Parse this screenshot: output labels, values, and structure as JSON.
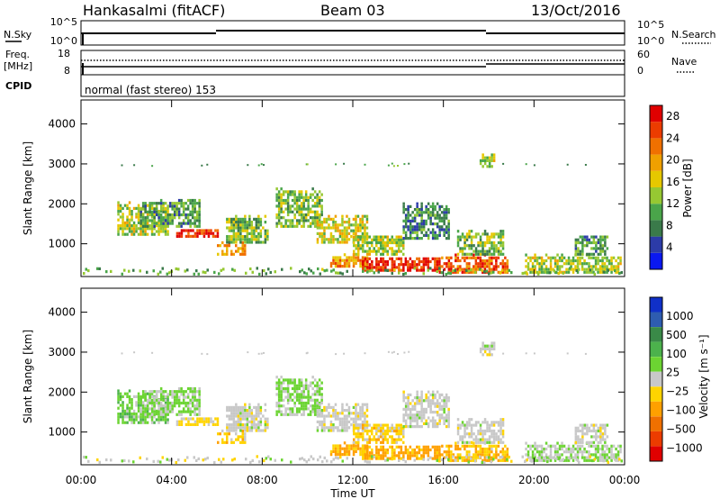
{
  "header": {
    "station": "Hankasalmi (fitACF)",
    "beam": "Beam 03",
    "date": "13/Oct/2016"
  },
  "noise_panel": {
    "left_label": "N.Sky",
    "right_label": "N.Search",
    "left_ticks": [
      "10^5",
      "10^0"
    ],
    "right_ticks": [
      "10^5",
      "10^0"
    ]
  },
  "freq_panel": {
    "left_label_1": "Freq.",
    "left_label_2": "[MHz]",
    "right_label": "Nave",
    "left_ticks": [
      "18",
      "8"
    ],
    "right_ticks": [
      "60",
      "0"
    ]
  },
  "cpid": {
    "label": "CPID",
    "text": "normal (fast stereo) 153"
  },
  "axes": {
    "ylabel": "Slant Range [km]",
    "xlabel": "Time UT",
    "yticks": [
      "1000",
      "2000",
      "3000",
      "4000"
    ],
    "xticks": [
      "00:00",
      "04:00",
      "08:00",
      "12:00",
      "16:00",
      "20:00",
      "00:00"
    ]
  },
  "power_scale": {
    "label": "Power [dB]",
    "ticks": [
      "4",
      "8",
      "12",
      "16",
      "20",
      "24",
      "28"
    ],
    "colors": [
      "#0a18f0",
      "#2c3ba8",
      "#3a7a4a",
      "#4aa54a",
      "#96c832",
      "#e6c800",
      "#f0a000",
      "#f07000",
      "#ec3c00",
      "#e00000"
    ]
  },
  "velocity_scale": {
    "label": "Velocity [m s⁻¹]",
    "ticks": [
      "1000",
      "500",
      "100",
      "25",
      "−25",
      "−100",
      "−500",
      "−1000"
    ],
    "colors": [
      "#1030c8",
      "#2e5cb0",
      "#3a8a48",
      "#4cb24c",
      "#6cd432",
      "#c8c8c8",
      "#ffd400",
      "#ffa000",
      "#f07000",
      "#ec3c00",
      "#e00000"
    ]
  },
  "chart_data": {
    "type": "heatmap",
    "x_range_hours": [
      0,
      24
    ],
    "y_range_km": [
      180,
      4600
    ],
    "grid": false,
    "panels": [
      "power",
      "velocity"
    ],
    "regions": [
      {
        "t0": 1.6,
        "t1": 3.8,
        "r0": 1200,
        "r1": 2000,
        "power": 14,
        "vel": 60
      },
      {
        "t0": 2.6,
        "t1": 5.2,
        "r0": 1400,
        "r1": 2100,
        "power": 10,
        "vel": 30
      },
      {
        "t0": 4.2,
        "t1": 6.0,
        "r0": 1150,
        "r1": 1350,
        "power": 26,
        "vel": -40
      },
      {
        "t0": 6.0,
        "t1": 7.2,
        "r0": 700,
        "r1": 1000,
        "power": 20,
        "vel": -60
      },
      {
        "t0": 6.4,
        "t1": 8.2,
        "r0": 1000,
        "r1": 1700,
        "power": 12,
        "vel": 0
      },
      {
        "t0": 8.6,
        "t1": 10.6,
        "r0": 1400,
        "r1": 2400,
        "power": 12,
        "vel": 40
      },
      {
        "t0": 10.4,
        "t1": 12.6,
        "r0": 1000,
        "r1": 1700,
        "power": 16,
        "vel": 0
      },
      {
        "t0": 11.0,
        "t1": 12.6,
        "r0": 400,
        "r1": 700,
        "power": 20,
        "vel": -150
      },
      {
        "t0": 12.4,
        "t1": 15.8,
        "r0": 300,
        "r1": 650,
        "power": 27,
        "vel": -160
      },
      {
        "t0": 12.0,
        "t1": 14.2,
        "r0": 700,
        "r1": 1200,
        "power": 14,
        "vel": -60
      },
      {
        "t0": 14.2,
        "t1": 16.2,
        "r0": 1100,
        "r1": 2000,
        "power": 8,
        "vel": 0
      },
      {
        "t0": 15.8,
        "t1": 18.8,
        "r0": 250,
        "r1": 700,
        "power": 24,
        "vel": -100
      },
      {
        "t0": 16.6,
        "t1": 18.6,
        "r0": 700,
        "r1": 1300,
        "power": 12,
        "vel": 0
      },
      {
        "t0": 19.6,
        "t1": 23.8,
        "r0": 250,
        "r1": 700,
        "power": 14,
        "vel": 20
      },
      {
        "t0": 21.8,
        "t1": 23.2,
        "r0": 700,
        "r1": 1200,
        "power": 10,
        "vel": 0
      },
      {
        "t0": 17.6,
        "t1": 18.2,
        "r0": 2900,
        "r1": 3200,
        "power": 14,
        "vel": 0
      }
    ]
  }
}
